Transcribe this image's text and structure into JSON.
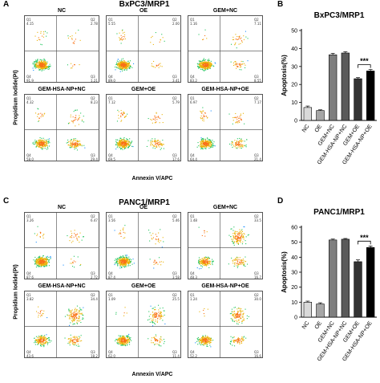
{
  "panels": {
    "A": {
      "letter": "A",
      "title": "BxPC3/MRP1",
      "ylabel": "Propidium Iodide(PI)",
      "xlabel": "Annexin V/APC",
      "plots": [
        {
          "title": "NC",
          "q1": "4.15",
          "q2": "2.78",
          "q3": "1.21",
          "q4": "91.9"
        },
        {
          "title": "OE",
          "q1": "5.55",
          "q2": "2.00",
          "q3": "3.41",
          "q4": "89.0"
        },
        {
          "title": "GEM+NC",
          "q1": "1.16",
          "q2": "7.11",
          "q3": "8.55",
          "q4": "83.2"
        },
        {
          "title": "GEM-HSA-NP+NC",
          "q1": "4.32",
          "q2": "8.23",
          "q3": "29.4",
          "q4": "58.0"
        },
        {
          "title": "GEM+OE",
          "q1": "7.12",
          "q2": "5.79",
          "q3": "17.6",
          "q4": "69.5"
        },
        {
          "title": "GEM-HSA-NP+OE",
          "q1": "6.97",
          "q2": "7.17",
          "q3": "21.4",
          "q4": "64.4"
        }
      ]
    },
    "C": {
      "letter": "C",
      "title": "PANC1/MRP1",
      "ylabel": "Propidium Iodide(PI)",
      "xlabel": "Annexin V/APC",
      "plots": [
        {
          "title": "NC",
          "q1": "3.26",
          "q2": "6.47",
          "q3": "2.72",
          "q4": "87.6"
        },
        {
          "title": "OE",
          "q1": "3.56",
          "q2": "5.46",
          "q3": "3.58",
          "q4": "87.4"
        },
        {
          "title": "GEM+NC",
          "q1": "1.48",
          "q2": "33.5",
          "q3": "16.7",
          "q4": "48.3"
        },
        {
          "title": "GEM-HSA-NP+NC",
          "q1": "3.82",
          "q2": "34.4",
          "q3": "18.2",
          "q4": "43.6"
        },
        {
          "title": "GEM+OE",
          "q1": "1.09",
          "q2": "25.5",
          "q3": "11.4",
          "q4": "62.0"
        },
        {
          "title": "GEM-HSA-NP+OE",
          "q1": "1.24",
          "q2": "30.0",
          "q3": "16.6",
          "q4": "52.2"
        }
      ]
    },
    "B": {
      "letter": "B"
    },
    "D": {
      "letter": "D"
    }
  },
  "chart_data": [
    {
      "type": "bar",
      "title": "BxPC3/MRP1",
      "ylabel": "Apoptosis(%)",
      "xlabel": "",
      "categories": [
        "NC",
        "OE",
        "GEM+NC",
        "GEM-HSA-NP+NC",
        "GEM+OE",
        "GEM-HSA-NP+OE"
      ],
      "values": [
        7.2,
        5.5,
        36.5,
        37.5,
        23.2,
        27.5
      ],
      "errors": [
        0.8,
        0.4,
        0.8,
        0.7,
        0.6,
        0.8
      ],
      "colors": [
        "#d9d9d9",
        "#a6a6a6",
        "#7f7f7f",
        "#5a5a5a",
        "#333333",
        "#000000"
      ],
      "ylim": [
        0,
        50
      ],
      "yticks": [
        0,
        10,
        20,
        30,
        40,
        50
      ],
      "significance": {
        "between": [
          4,
          5
        ],
        "label": "***"
      }
    },
    {
      "type": "bar",
      "title": "PANC1/MRP1",
      "ylabel": "Apoptosis(%)",
      "xlabel": "",
      "categories": [
        "NC",
        "OE",
        "GEM+NC",
        "GEM-HSA-NP+NC",
        "GEM+OE",
        "GEM-HSA-NP+OE"
      ],
      "values": [
        10.0,
        8.8,
        51.5,
        52.0,
        37.0,
        46.5
      ],
      "errors": [
        0.7,
        0.8,
        0.6,
        0.5,
        1.2,
        1.0
      ],
      "colors": [
        "#d9d9d9",
        "#a6a6a6",
        "#7f7f7f",
        "#5a5a5a",
        "#333333",
        "#000000"
      ],
      "ylim": [
        0,
        60
      ],
      "yticks": [
        0,
        10,
        20,
        30,
        40,
        50,
        60
      ],
      "significance": {
        "between": [
          4,
          5
        ],
        "label": "***"
      }
    }
  ]
}
